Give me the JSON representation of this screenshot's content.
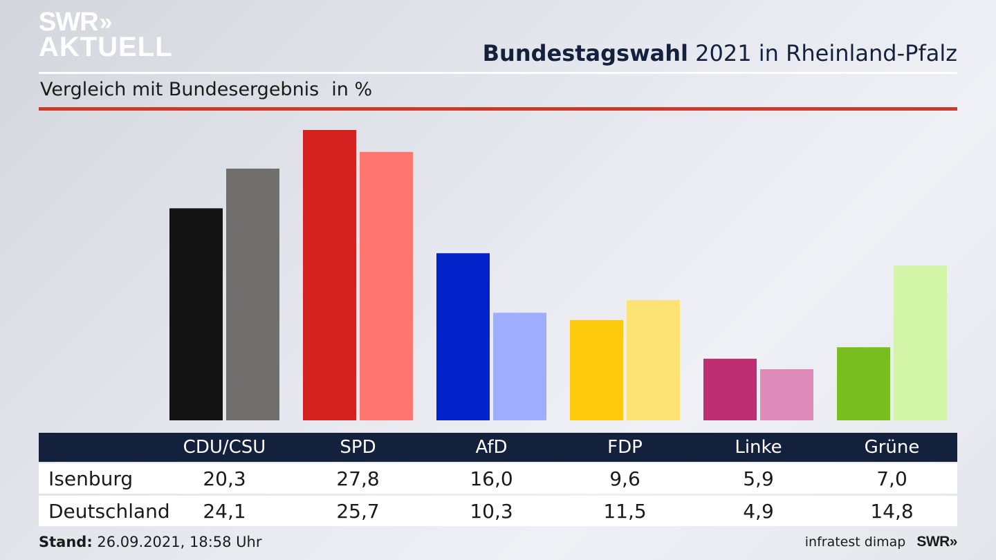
{
  "logo": {
    "line1": "SWR",
    "chevrons": "»",
    "line2": "AKTUELL"
  },
  "header": {
    "title_bold": "Bundestagswahl",
    "title_rest": " 2021 in Rheinland-Pfalz",
    "subtitle": "Vergleich mit Bundesergebnis",
    "unit": "in %"
  },
  "table": {
    "row_labels": [
      "Isenburg",
      "Deutschland"
    ]
  },
  "footer": {
    "stand_label": "Stand:",
    "stand_value": " 26.09.2021, 18:58 Uhr",
    "source": "infratest dimap",
    "brand": "SWR»"
  },
  "chart_data": {
    "type": "bar",
    "categories": [
      "CDU/CSU",
      "SPD",
      "AfD",
      "FDP",
      "Linke",
      "Grüne"
    ],
    "series": [
      {
        "name": "Isenburg",
        "values": [
          20.3,
          27.8,
          16.0,
          9.6,
          5.9,
          7.0
        ],
        "colors": [
          "#141414",
          "#d52020",
          "#0022c8",
          "#fdc90c",
          "#bd2e72",
          "#78be20"
        ]
      },
      {
        "name": "Deutschland",
        "values": [
          24.1,
          25.7,
          10.3,
          11.5,
          4.9,
          14.8
        ],
        "colors": [
          "#706f6d",
          "#ff7570",
          "#9fadff",
          "#fde274",
          "#e08cbb",
          "#d2f5a7"
        ]
      }
    ],
    "value_labels": {
      "Isenburg": [
        "20,3",
        "27,8",
        "16,0",
        "9,6",
        "5,9",
        "7,0"
      ],
      "Deutschland": [
        "24,1",
        "25,7",
        "10,3",
        "11,5",
        "4,9",
        "14,8"
      ]
    },
    "ylim": [
      0,
      27.8
    ],
    "grid": false,
    "legend": "table below chart"
  }
}
